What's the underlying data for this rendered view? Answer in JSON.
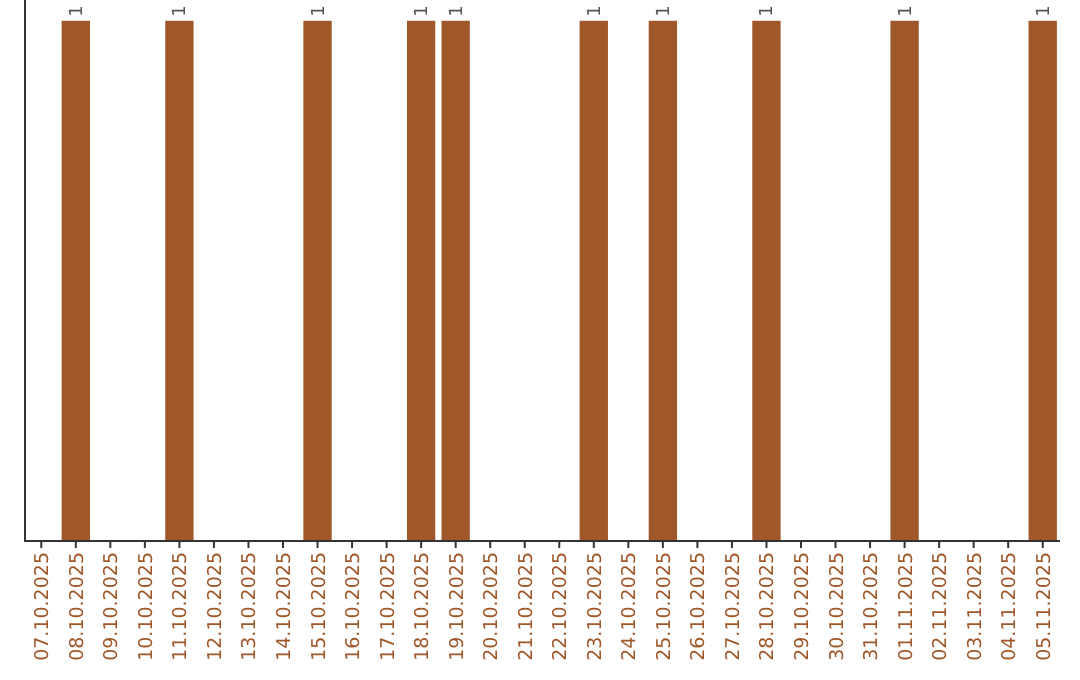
{
  "chart_data": {
    "type": "bar",
    "categories": [
      "07.10.2025",
      "08.10.2025",
      "09.10.2025",
      "10.10.2025",
      "11.10.2025",
      "12.10.2025",
      "13.10.2025",
      "14.10.2025",
      "15.10.2025",
      "16.10.2025",
      "17.10.2025",
      "18.10.2025",
      "19.10.2025",
      "20.10.2025",
      "21.10.2025",
      "22.10.2025",
      "23.10.2025",
      "24.10.2025",
      "25.10.2025",
      "26.10.2025",
      "27.10.2025",
      "28.10.2025",
      "29.10.2025",
      "30.10.2025",
      "31.10.2025",
      "01.11.2025",
      "02.11.2025",
      "03.11.2025",
      "04.11.2025",
      "05.11.2025"
    ],
    "values": [
      0,
      1,
      0,
      0,
      1,
      0,
      0,
      0,
      1,
      0,
      0,
      1,
      1,
      0,
      0,
      0,
      1,
      0,
      1,
      0,
      0,
      1,
      0,
      0,
      0,
      1,
      0,
      0,
      0,
      1
    ],
    "value_labels": [
      null,
      "1",
      null,
      null,
      "1",
      null,
      null,
      null,
      "1",
      null,
      null,
      "1",
      "1",
      null,
      null,
      null,
      "1",
      null,
      "1",
      null,
      null,
      "1",
      null,
      null,
      null,
      "1",
      null,
      null,
      null,
      "1"
    ],
    "color": "#a0582a",
    "ylim": [
      0,
      1.04
    ],
    "tick_labels": "x"
  }
}
